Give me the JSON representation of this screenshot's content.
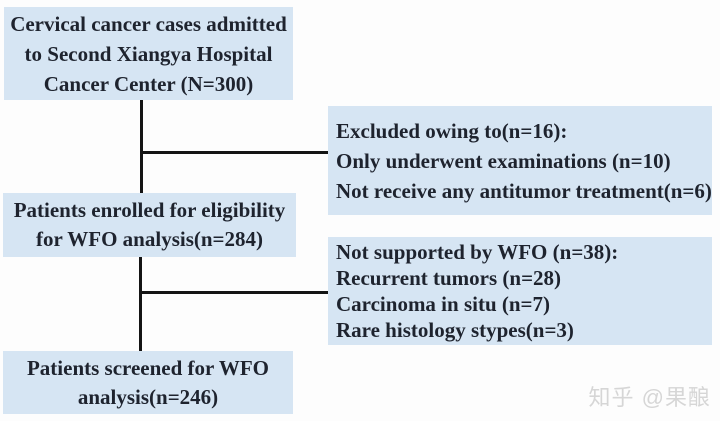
{
  "flow": {
    "boxes": [
      {
        "name": "admitted",
        "lines": [
          "Cervical cancer cases admitted",
          "to Second Xiangya Hospital",
          "Cancer Center (N=300)"
        ]
      },
      {
        "name": "excluded",
        "lines": [
          "Excluded owing to(n=16):",
          "Only underwent examinations (n=10)",
          "Not receive any antitumor treatment(n=6)"
        ]
      },
      {
        "name": "enrolled",
        "lines": [
          "Patients enrolled for eligibility",
          "for WFO analysis(n=284)"
        ]
      },
      {
        "name": "not-supported",
        "lines": [
          "Not supported by WFO (n=38):",
          "Recurrent tumors (n=28)",
          "Carcinoma in situ (n=7)",
          "Rare histology stypes(n=3)"
        ]
      },
      {
        "name": "screened",
        "lines": [
          "Patients screened for WFO",
          "analysis(n=246)"
        ]
      }
    ],
    "counts": {
      "admitted": 300,
      "excluded_total": 16,
      "only_examinations": 10,
      "no_antitumor_treatment": 6,
      "enrolled": 284,
      "not_supported_total": 38,
      "recurrent_tumors": 28,
      "carcinoma_in_situ": 7,
      "rare_histology": 3,
      "screened": 246
    },
    "colors": {
      "box_fill": "#d6e5f3",
      "connector": "#141414",
      "text": "#1e232e",
      "watermark": "#d6d6d6",
      "background": "#fdfdfd"
    },
    "watermark": "知乎 @果酿"
  }
}
